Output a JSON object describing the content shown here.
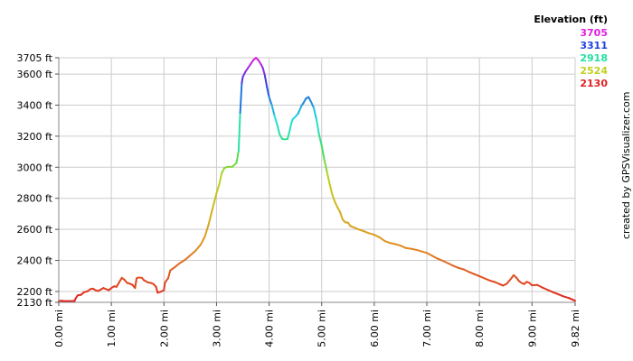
{
  "chart_data": {
    "type": "line",
    "x_unit": "mi",
    "y_unit": "ft",
    "xlim": [
      0,
      9.82
    ],
    "ylim": [
      2130,
      3705
    ],
    "y_ticks": [
      {
        "value": 2130,
        "label": "2130 ft"
      },
      {
        "value": 2200,
        "label": "2200 ft"
      },
      {
        "value": 2400,
        "label": "2400 ft"
      },
      {
        "value": 2600,
        "label": "2600 ft"
      },
      {
        "value": 2800,
        "label": "2800 ft"
      },
      {
        "value": 3000,
        "label": "3000 ft"
      },
      {
        "value": 3200,
        "label": "3200 ft"
      },
      {
        "value": 3400,
        "label": "3400 ft"
      },
      {
        "value": 3600,
        "label": "3600 ft"
      },
      {
        "value": 3705,
        "label": "3705 ft"
      }
    ],
    "x_ticks": [
      {
        "value": 0.0,
        "label": "0.00 mi"
      },
      {
        "value": 1.0,
        "label": "1.00 mi"
      },
      {
        "value": 2.0,
        "label": "2.00 mi"
      },
      {
        "value": 3.0,
        "label": "3.00 mi"
      },
      {
        "value": 4.0,
        "label": "4.00 mi"
      },
      {
        "value": 5.0,
        "label": "5.00 mi"
      },
      {
        "value": 6.0,
        "label": "6.00 mi"
      },
      {
        "value": 7.0,
        "label": "7.00 mi"
      },
      {
        "value": 8.0,
        "label": "8.00 mi"
      },
      {
        "value": 9.0,
        "label": "9.00 mi"
      },
      {
        "value": 9.82,
        "label": "9.82 mi"
      }
    ],
    "grid": true,
    "legend": {
      "title": "Elevation (ft)",
      "placement": "top-right",
      "entries": [
        {
          "label": "3705",
          "color": "#e020e0"
        },
        {
          "label": "3311",
          "color": "#2040e0"
        },
        {
          "label": "2918",
          "color": "#20e0a0"
        },
        {
          "label": "2524",
          "color": "#c0d020"
        },
        {
          "label": "2130",
          "color": "#e02020"
        }
      ]
    },
    "credit": "created by GPSVisualizer.com",
    "series": [
      {
        "points": [
          [
            0.0,
            2138
          ],
          [
            0.05,
            2140
          ],
          [
            0.1,
            2138
          ],
          [
            0.2,
            2138
          ],
          [
            0.3,
            2139
          ],
          [
            0.32,
            2155
          ],
          [
            0.36,
            2175
          ],
          [
            0.42,
            2178
          ],
          [
            0.48,
            2195
          ],
          [
            0.55,
            2202
          ],
          [
            0.6,
            2215
          ],
          [
            0.65,
            2218
          ],
          [
            0.7,
            2208
          ],
          [
            0.75,
            2203
          ],
          [
            0.8,
            2213
          ],
          [
            0.85,
            2222
          ],
          [
            0.9,
            2215
          ],
          [
            0.95,
            2208
          ],
          [
            1.0,
            2222
          ],
          [
            1.05,
            2233
          ],
          [
            1.1,
            2230
          ],
          [
            1.15,
            2260
          ],
          [
            1.2,
            2288
          ],
          [
            1.25,
            2275
          ],
          [
            1.3,
            2255
          ],
          [
            1.35,
            2250
          ],
          [
            1.4,
            2243
          ],
          [
            1.45,
            2222
          ],
          [
            1.48,
            2285
          ],
          [
            1.52,
            2290
          ],
          [
            1.58,
            2288
          ],
          [
            1.62,
            2272
          ],
          [
            1.7,
            2258
          ],
          [
            1.75,
            2255
          ],
          [
            1.8,
            2248
          ],
          [
            1.85,
            2230
          ],
          [
            1.88,
            2192
          ],
          [
            1.93,
            2197
          ],
          [
            2.0,
            2208
          ],
          [
            2.02,
            2258
          ],
          [
            2.08,
            2285
          ],
          [
            2.12,
            2335
          ],
          [
            2.2,
            2355
          ],
          [
            2.3,
            2382
          ],
          [
            2.4,
            2403
          ],
          [
            2.5,
            2432
          ],
          [
            2.6,
            2462
          ],
          [
            2.7,
            2502
          ],
          [
            2.78,
            2555
          ],
          [
            2.85,
            2632
          ],
          [
            2.92,
            2728
          ],
          [
            3.0,
            2832
          ],
          [
            3.05,
            2888
          ],
          [
            3.1,
            2962
          ],
          [
            3.15,
            2995
          ],
          [
            3.2,
            3002
          ],
          [
            3.3,
            3003
          ],
          [
            3.38,
            3028
          ],
          [
            3.42,
            3105
          ],
          [
            3.45,
            3350
          ],
          [
            3.48,
            3540
          ],
          [
            3.5,
            3582
          ],
          [
            3.55,
            3615
          ],
          [
            3.6,
            3640
          ],
          [
            3.65,
            3665
          ],
          [
            3.7,
            3690
          ],
          [
            3.75,
            3705
          ],
          [
            3.8,
            3688
          ],
          [
            3.85,
            3660
          ],
          [
            3.88,
            3640
          ],
          [
            3.92,
            3590
          ],
          [
            3.96,
            3515
          ],
          [
            4.0,
            3452
          ],
          [
            4.05,
            3402
          ],
          [
            4.1,
            3335
          ],
          [
            4.15,
            3278
          ],
          [
            4.2,
            3212
          ],
          [
            4.25,
            3182
          ],
          [
            4.3,
            3180
          ],
          [
            4.35,
            3182
          ],
          [
            4.38,
            3218
          ],
          [
            4.42,
            3280
          ],
          [
            4.45,
            3310
          ],
          [
            4.5,
            3325
          ],
          [
            4.55,
            3345
          ],
          [
            4.62,
            3398
          ],
          [
            4.65,
            3412
          ],
          [
            4.7,
            3442
          ],
          [
            4.75,
            3452
          ],
          [
            4.8,
            3420
          ],
          [
            4.85,
            3382
          ],
          [
            4.9,
            3308
          ],
          [
            4.95,
            3210
          ],
          [
            5.0,
            3140
          ],
          [
            5.05,
            3048
          ],
          [
            5.1,
            2972
          ],
          [
            5.15,
            2895
          ],
          [
            5.2,
            2825
          ],
          [
            5.25,
            2778
          ],
          [
            5.3,
            2742
          ],
          [
            5.35,
            2712
          ],
          [
            5.4,
            2662
          ],
          [
            5.45,
            2645
          ],
          [
            5.5,
            2643
          ],
          [
            5.55,
            2620
          ],
          [
            5.6,
            2614
          ],
          [
            5.7,
            2600
          ],
          [
            5.8,
            2588
          ],
          [
            5.9,
            2575
          ],
          [
            6.0,
            2565
          ],
          [
            6.1,
            2548
          ],
          [
            6.2,
            2525
          ],
          [
            6.3,
            2512
          ],
          [
            6.4,
            2505
          ],
          [
            6.5,
            2495
          ],
          [
            6.6,
            2480
          ],
          [
            6.7,
            2475
          ],
          [
            6.8,
            2468
          ],
          [
            6.9,
            2458
          ],
          [
            7.0,
            2448
          ],
          [
            7.1,
            2430
          ],
          [
            7.2,
            2412
          ],
          [
            7.3,
            2398
          ],
          [
            7.4,
            2382
          ],
          [
            7.5,
            2366
          ],
          [
            7.6,
            2352
          ],
          [
            7.7,
            2342
          ],
          [
            7.8,
            2326
          ],
          [
            7.9,
            2312
          ],
          [
            8.0,
            2298
          ],
          [
            8.1,
            2284
          ],
          [
            8.2,
            2270
          ],
          [
            8.3,
            2260
          ],
          [
            8.4,
            2245
          ],
          [
            8.45,
            2238
          ],
          [
            8.52,
            2250
          ],
          [
            8.6,
            2282
          ],
          [
            8.65,
            2305
          ],
          [
            8.7,
            2290
          ],
          [
            8.75,
            2268
          ],
          [
            8.8,
            2255
          ],
          [
            8.85,
            2248
          ],
          [
            8.9,
            2262
          ],
          [
            8.95,
            2255
          ],
          [
            9.0,
            2240
          ],
          [
            9.1,
            2242
          ],
          [
            9.2,
            2225
          ],
          [
            9.3,
            2210
          ],
          [
            9.4,
            2195
          ],
          [
            9.5,
            2182
          ],
          [
            9.6,
            2168
          ],
          [
            9.7,
            2158
          ],
          [
            9.82,
            2140
          ]
        ]
      }
    ]
  }
}
